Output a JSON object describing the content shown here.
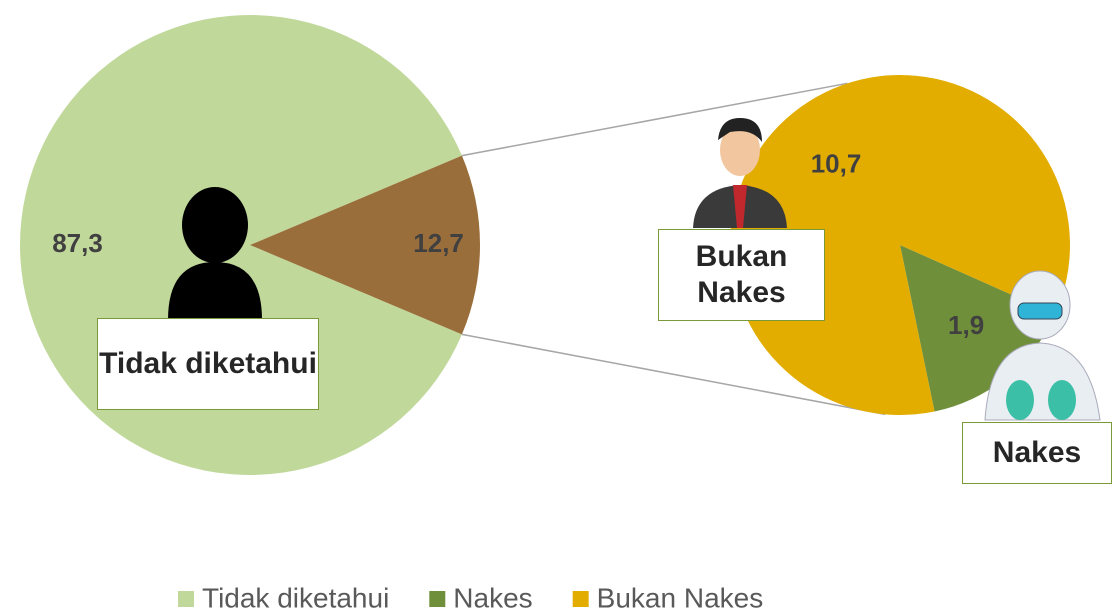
{
  "chart_data": {
    "type": "pie-of-pie",
    "main": {
      "categories": [
        "Tidak diketahui",
        null
      ],
      "values": [
        87.3,
        12.7
      ],
      "value_labels": [
        "87,3",
        "12,7"
      ],
      "colors": [
        "#c0d89a",
        "#9a6e3a"
      ]
    },
    "secondary": {
      "categories": [
        "Nakes",
        "Bukan Nakes"
      ],
      "values": [
        1.9,
        10.7
      ],
      "value_labels": [
        "1,9",
        "10,7"
      ],
      "colors": [
        "#6f8f3a",
        "#e3ad00"
      ]
    }
  }
}
